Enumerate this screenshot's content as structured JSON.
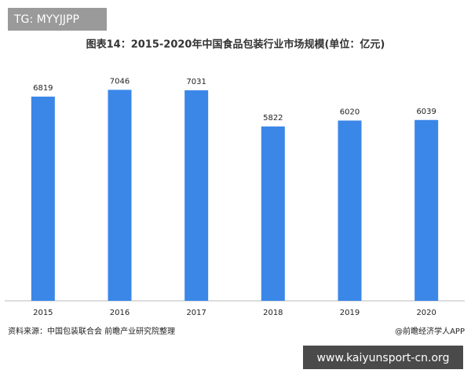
{
  "watermark_top": "TG: MYYJJPP",
  "watermark_bottom": "www.kaiyunsport-cn.org",
  "chart_data": {
    "type": "bar",
    "title": "图表14：2015-2020年中国食品包装行业市场规模(单位：亿元)",
    "categories": [
      "2015",
      "2016",
      "2017",
      "2018",
      "2019",
      "2020"
    ],
    "values": [
      6819,
      7046,
      7031,
      5822,
      6020,
      6039
    ],
    "color": "#3a87e8",
    "ylim": [
      0,
      8000
    ],
    "source": "资料来源：中国包装联合会 前瞻产业研究院整理",
    "credit": "@前瞻经济学人APP"
  }
}
